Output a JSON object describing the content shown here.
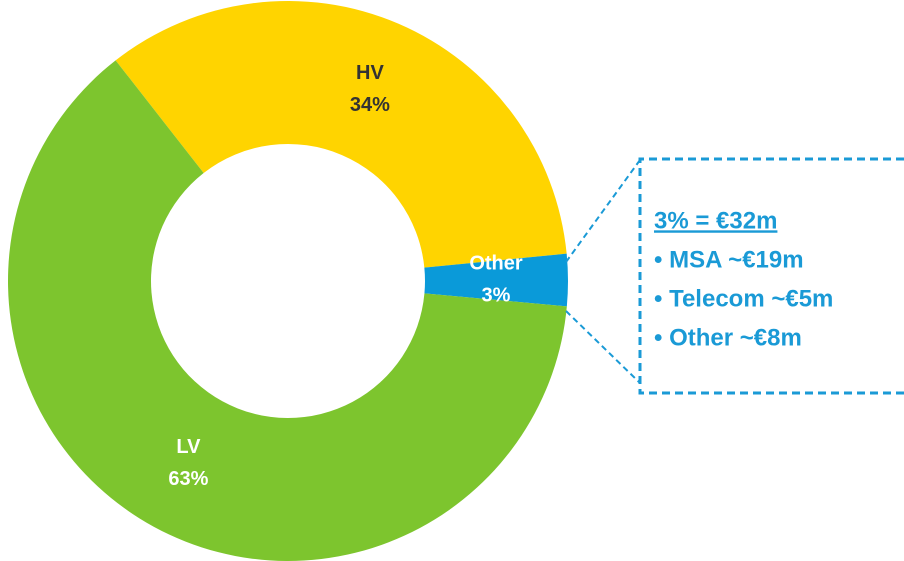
{
  "chart_data": {
    "type": "donut",
    "categories": [
      "HV",
      "Other",
      "LV"
    ],
    "values": [
      34,
      3,
      63
    ],
    "value_labels": [
      "34%",
      "3%",
      "63%"
    ],
    "colors": [
      "#ffd400",
      "#0a9ad9",
      "#7dc52e"
    ],
    "label_colors": [
      "#333333",
      "#ffffff",
      "#ffffff"
    ],
    "callout": {
      "title": "3% = €32m",
      "items": [
        "• MSA ~€19m",
        "• Telecom ~€5m",
        "• Other ~€8m"
      ]
    }
  }
}
